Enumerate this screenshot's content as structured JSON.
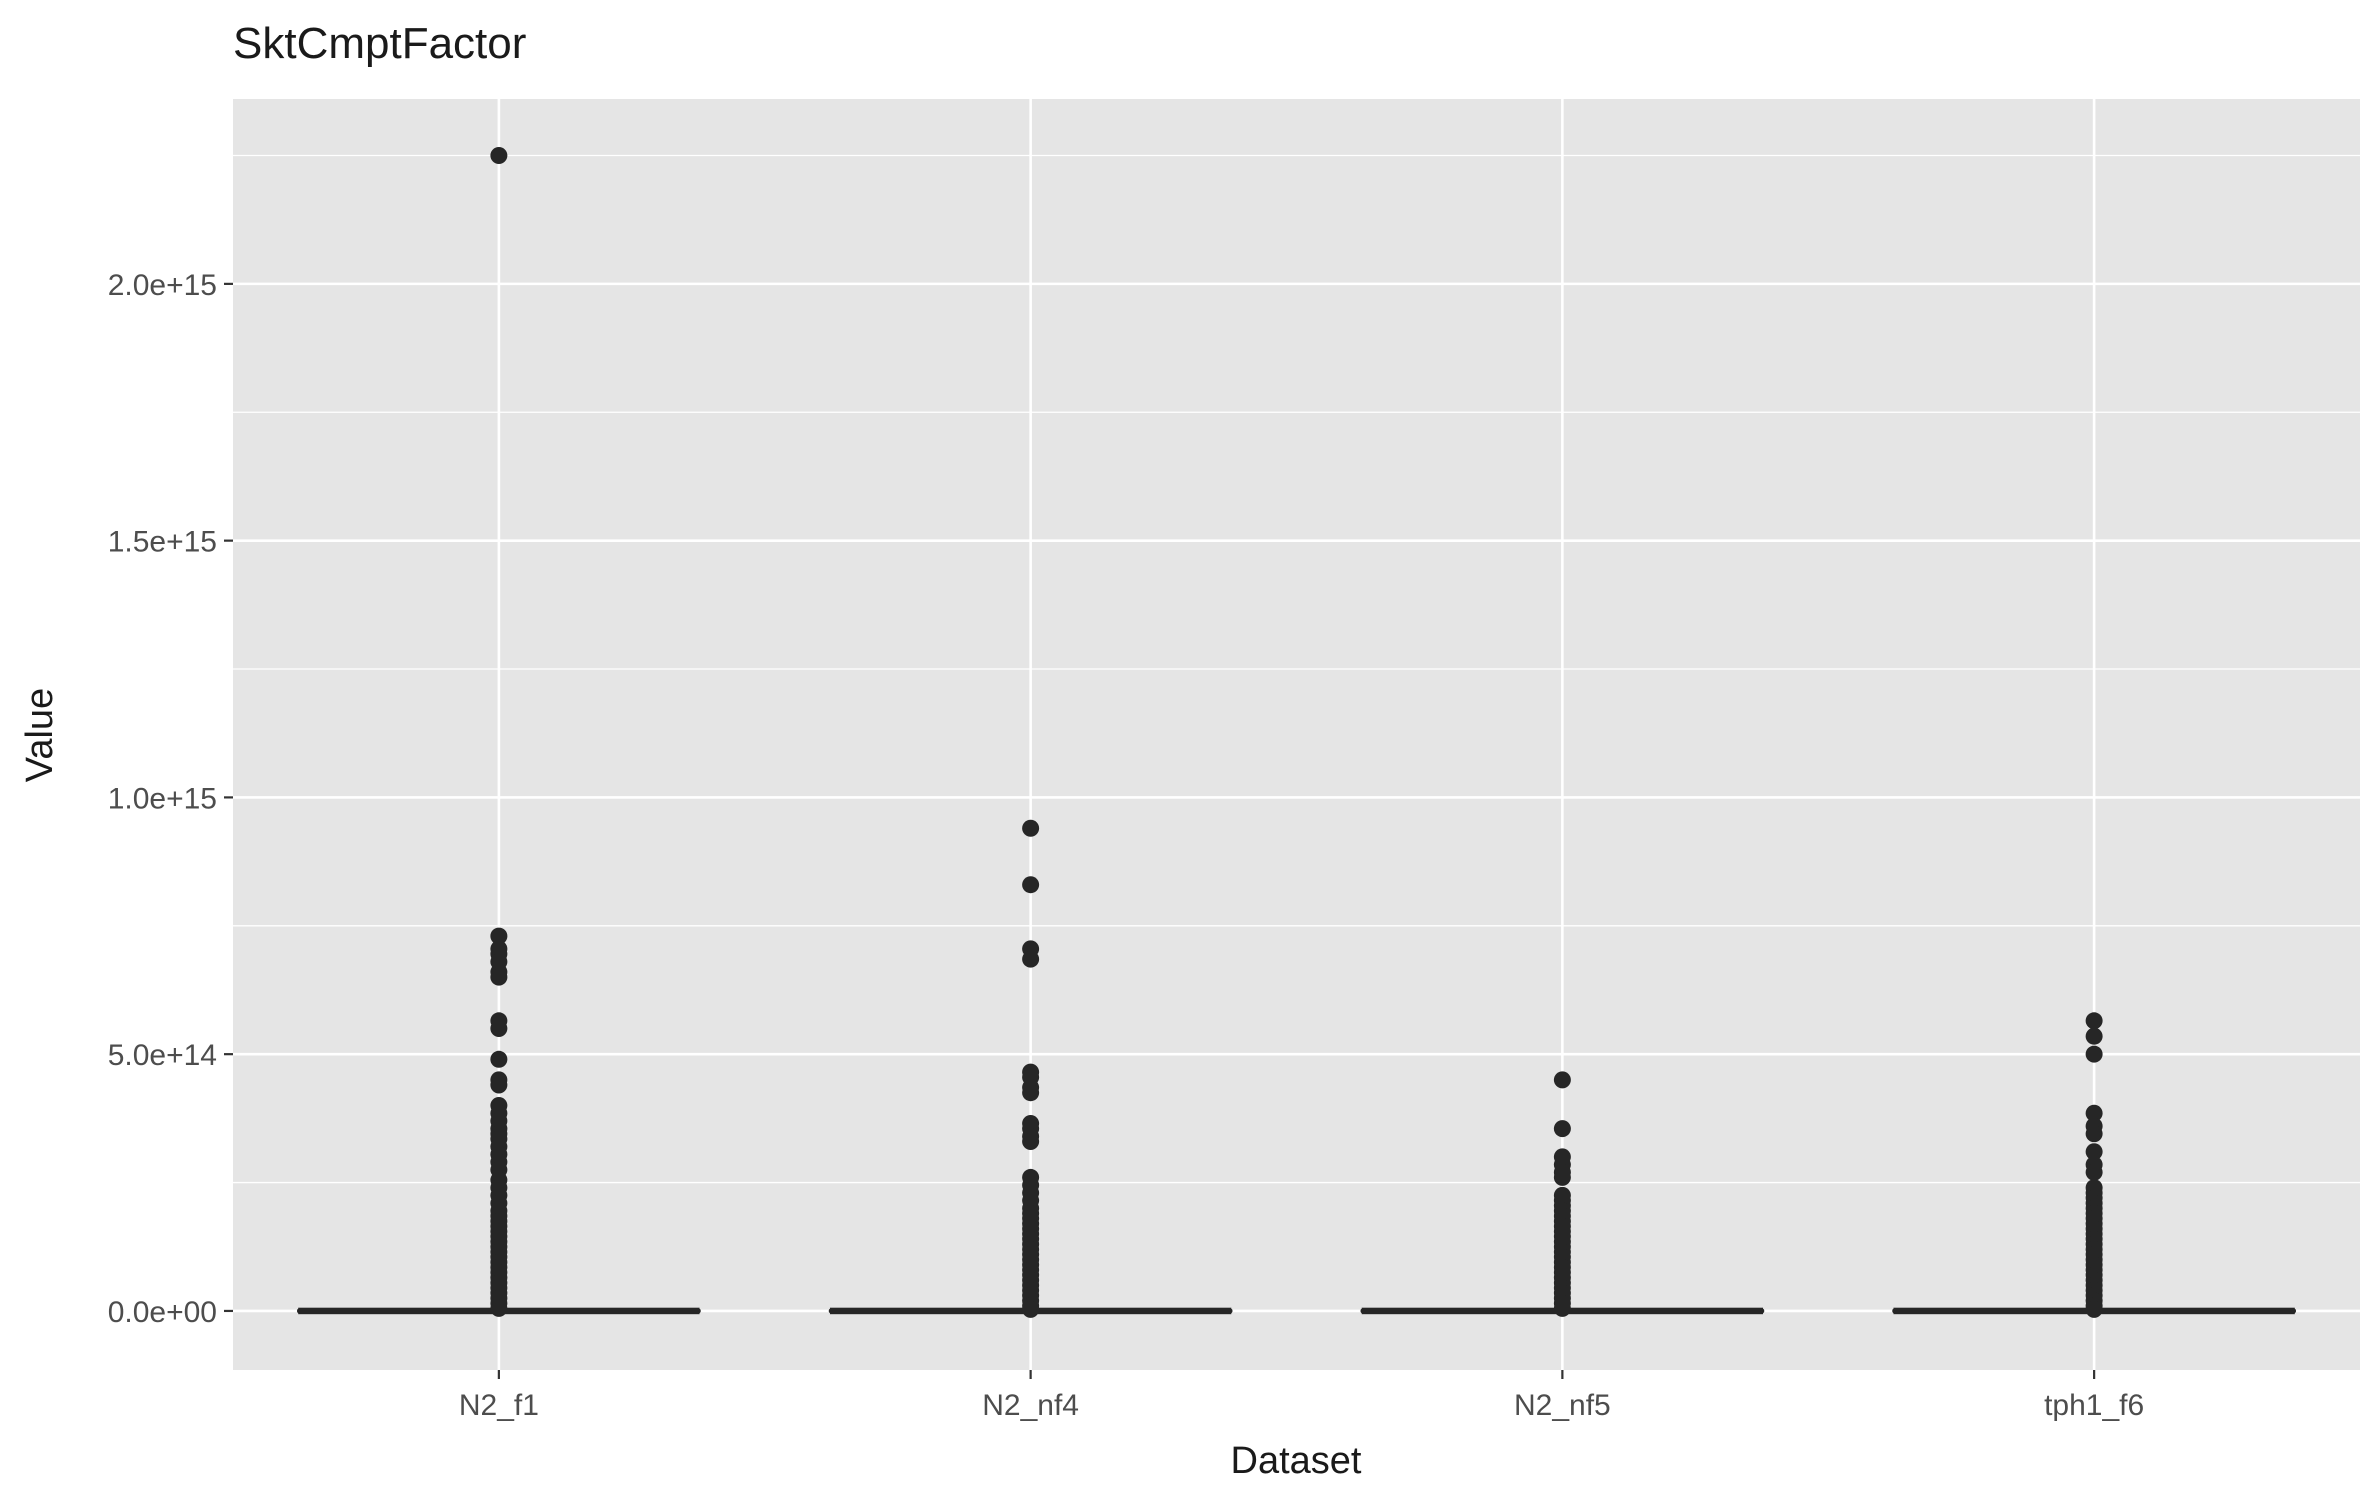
{
  "chart_data": {
    "type": "boxplot",
    "title": "SktCmptFactor",
    "xlabel": "Dataset",
    "ylabel": "Value",
    "categories": [
      "N2_f1",
      "N2_nf4",
      "N2_nf5",
      "tph1_f6"
    ],
    "ylim": [
      -115000000000000.0,
      2360000000000000.0
    ],
    "yticks": [
      0,
      500000000000000.0,
      1000000000000000.0,
      1500000000000000.0,
      2000000000000000.0
    ],
    "ytick_labels": [
      "0.0e+00",
      "5.0e+14",
      "1.0e+15",
      "1.5e+15",
      "2.0e+15"
    ],
    "grid": true,
    "legend": "none",
    "colors": {
      "panel": "#e5e5e5",
      "grid": "#ffffff",
      "points": "#262626",
      "box": "#262626",
      "text": "#1a1a1a",
      "tick_text": "#4d4d4d"
    },
    "boxes": [
      {
        "category": "N2_f1",
        "median": 0,
        "q1": 0,
        "q3": 0,
        "whisker_low": 0,
        "whisker_high": 0,
        "outliers": [
          2250000000000000.0,
          730000000000000.0,
          705000000000000.0,
          695000000000000.0,
          680000000000000.0,
          660000000000000.0,
          650000000000000.0,
          565000000000000.0,
          550000000000000.0,
          490000000000000.0,
          450000000000000.0,
          440000000000000.0,
          400000000000000.0,
          385000000000000.0,
          370000000000000.0,
          355000000000000.0,
          345000000000000.0,
          335000000000000.0,
          320000000000000.0,
          305000000000000.0,
          290000000000000.0,
          275000000000000.0,
          255000000000000.0,
          240000000000000.0,
          225000000000000.0,
          210000000000000.0,
          195000000000000.0,
          185000000000000.0,
          175000000000000.0,
          165000000000000.0,
          155000000000000.0,
          145000000000000.0,
          135000000000000.0,
          125000000000000.0,
          115000000000000.0,
          105000000000000.0,
          95000000000000.0,
          85000000000000.0,
          75000000000000.0,
          65000000000000.0,
          55000000000000.0,
          45000000000000.0,
          35000000000000.0,
          25000000000000.0,
          15000000000000.0,
          5000000000000.0
        ]
      },
      {
        "category": "N2_nf4",
        "median": 0,
        "q1": 0,
        "q3": 0,
        "whisker_low": 0,
        "whisker_high": 0,
        "outliers": [
          940000000000000.0,
          830000000000000.0,
          705000000000000.0,
          685000000000000.0,
          465000000000000.0,
          455000000000000.0,
          435000000000000.0,
          425000000000000.0,
          365000000000000.0,
          355000000000000.0,
          340000000000000.0,
          330000000000000.0,
          260000000000000.0,
          245000000000000.0,
          230000000000000.0,
          215000000000000.0,
          200000000000000.0,
          190000000000000.0,
          180000000000000.0,
          170000000000000.0,
          160000000000000.0,
          150000000000000.0,
          140000000000000.0,
          130000000000000.0,
          120000000000000.0,
          110000000000000.0,
          100000000000000.0,
          90000000000000.0,
          80000000000000.0,
          70000000000000.0,
          60000000000000.0,
          50000000000000.0,
          40000000000000.0,
          30000000000000.0,
          20000000000000.0,
          10000000000000.0,
          3000000000000.0
        ]
      },
      {
        "category": "N2_nf5",
        "median": 0,
        "q1": 0,
        "q3": 0,
        "whisker_low": 0,
        "whisker_high": 0,
        "outliers": [
          450000000000000.0,
          355000000000000.0,
          300000000000000.0,
          285000000000000.0,
          270000000000000.0,
          260000000000000.0,
          225000000000000.0,
          215000000000000.0,
          205000000000000.0,
          195000000000000.0,
          185000000000000.0,
          175000000000000.0,
          165000000000000.0,
          155000000000000.0,
          145000000000000.0,
          135000000000000.0,
          125000000000000.0,
          115000000000000.0,
          105000000000000.0,
          95000000000000.0,
          85000000000000.0,
          75000000000000.0,
          65000000000000.0,
          55000000000000.0,
          45000000000000.0,
          35000000000000.0,
          25000000000000.0,
          15000000000000.0,
          5000000000000.0
        ]
      },
      {
        "category": "tph1_f6",
        "median": 0,
        "q1": 0,
        "q3": 0,
        "whisker_low": 0,
        "whisker_high": 0,
        "outliers": [
          565000000000000.0,
          535000000000000.0,
          500000000000000.0,
          385000000000000.0,
          360000000000000.0,
          345000000000000.0,
          310000000000000.0,
          285000000000000.0,
          270000000000000.0,
          240000000000000.0,
          230000000000000.0,
          220000000000000.0,
          210000000000000.0,
          200000000000000.0,
          190000000000000.0,
          180000000000000.0,
          170000000000000.0,
          160000000000000.0,
          150000000000000.0,
          140000000000000.0,
          130000000000000.0,
          120000000000000.0,
          110000000000000.0,
          100000000000000.0,
          90000000000000.0,
          80000000000000.0,
          70000000000000.0,
          60000000000000.0,
          50000000000000.0,
          40000000000000.0,
          30000000000000.0,
          20000000000000.0,
          10000000000000.0,
          3000000000000.0
        ]
      }
    ]
  }
}
